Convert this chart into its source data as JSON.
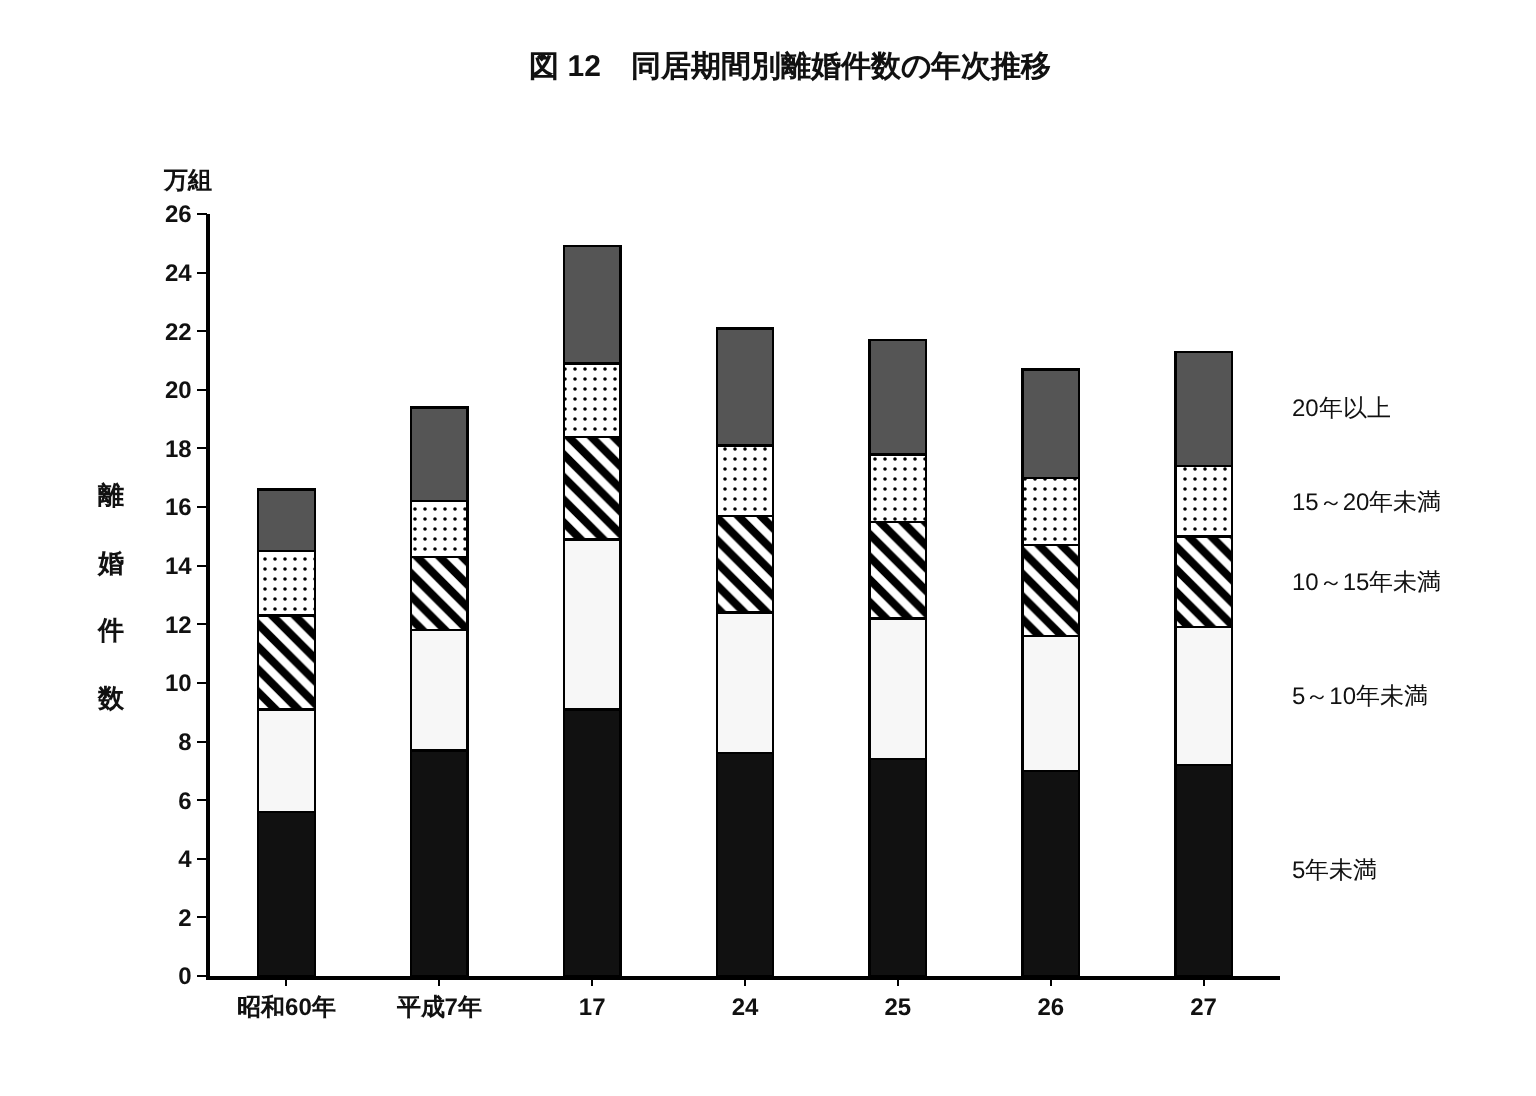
{
  "chart_data": {
    "type": "bar",
    "title": "図 12　同居期間別離婚件数の年次推移",
    "ylabel": "離婚件数",
    "annotations": [
      "万組"
    ],
    "categories": [
      "昭和60年",
      "平成7年",
      "17",
      "24",
      "25",
      "26",
      "27"
    ],
    "stacked": true,
    "series": [
      {
        "name": "5年未満",
        "color": "#111111",
        "values": [
          5.6,
          7.7,
          9.1,
          7.6,
          7.4,
          7.0,
          7.2
        ]
      },
      {
        "name": "5～10年未満",
        "color": "#f7f7f7",
        "values": [
          3.5,
          4.1,
          5.8,
          4.8,
          4.8,
          4.6,
          4.7
        ]
      },
      {
        "name": "10～15年未満",
        "color": "#000000",
        "values": [
          3.2,
          2.5,
          3.5,
          3.3,
          3.3,
          3.1,
          3.1
        ]
      },
      {
        "name": "15～20年未満",
        "color": "#000000",
        "values": [
          2.2,
          1.9,
          2.5,
          2.4,
          2.3,
          2.3,
          2.4
        ]
      },
      {
        "name": "20年以上",
        "color": "#555555",
        "values": [
          2.1,
          3.2,
          4.0,
          4.0,
          3.9,
          3.7,
          3.9
        ]
      }
    ],
    "ylim": [
      0,
      26
    ],
    "yticks": [
      0,
      2,
      4,
      6,
      8,
      10,
      12,
      14,
      16,
      18,
      20,
      22,
      24,
      26
    ],
    "grid": false
  }
}
